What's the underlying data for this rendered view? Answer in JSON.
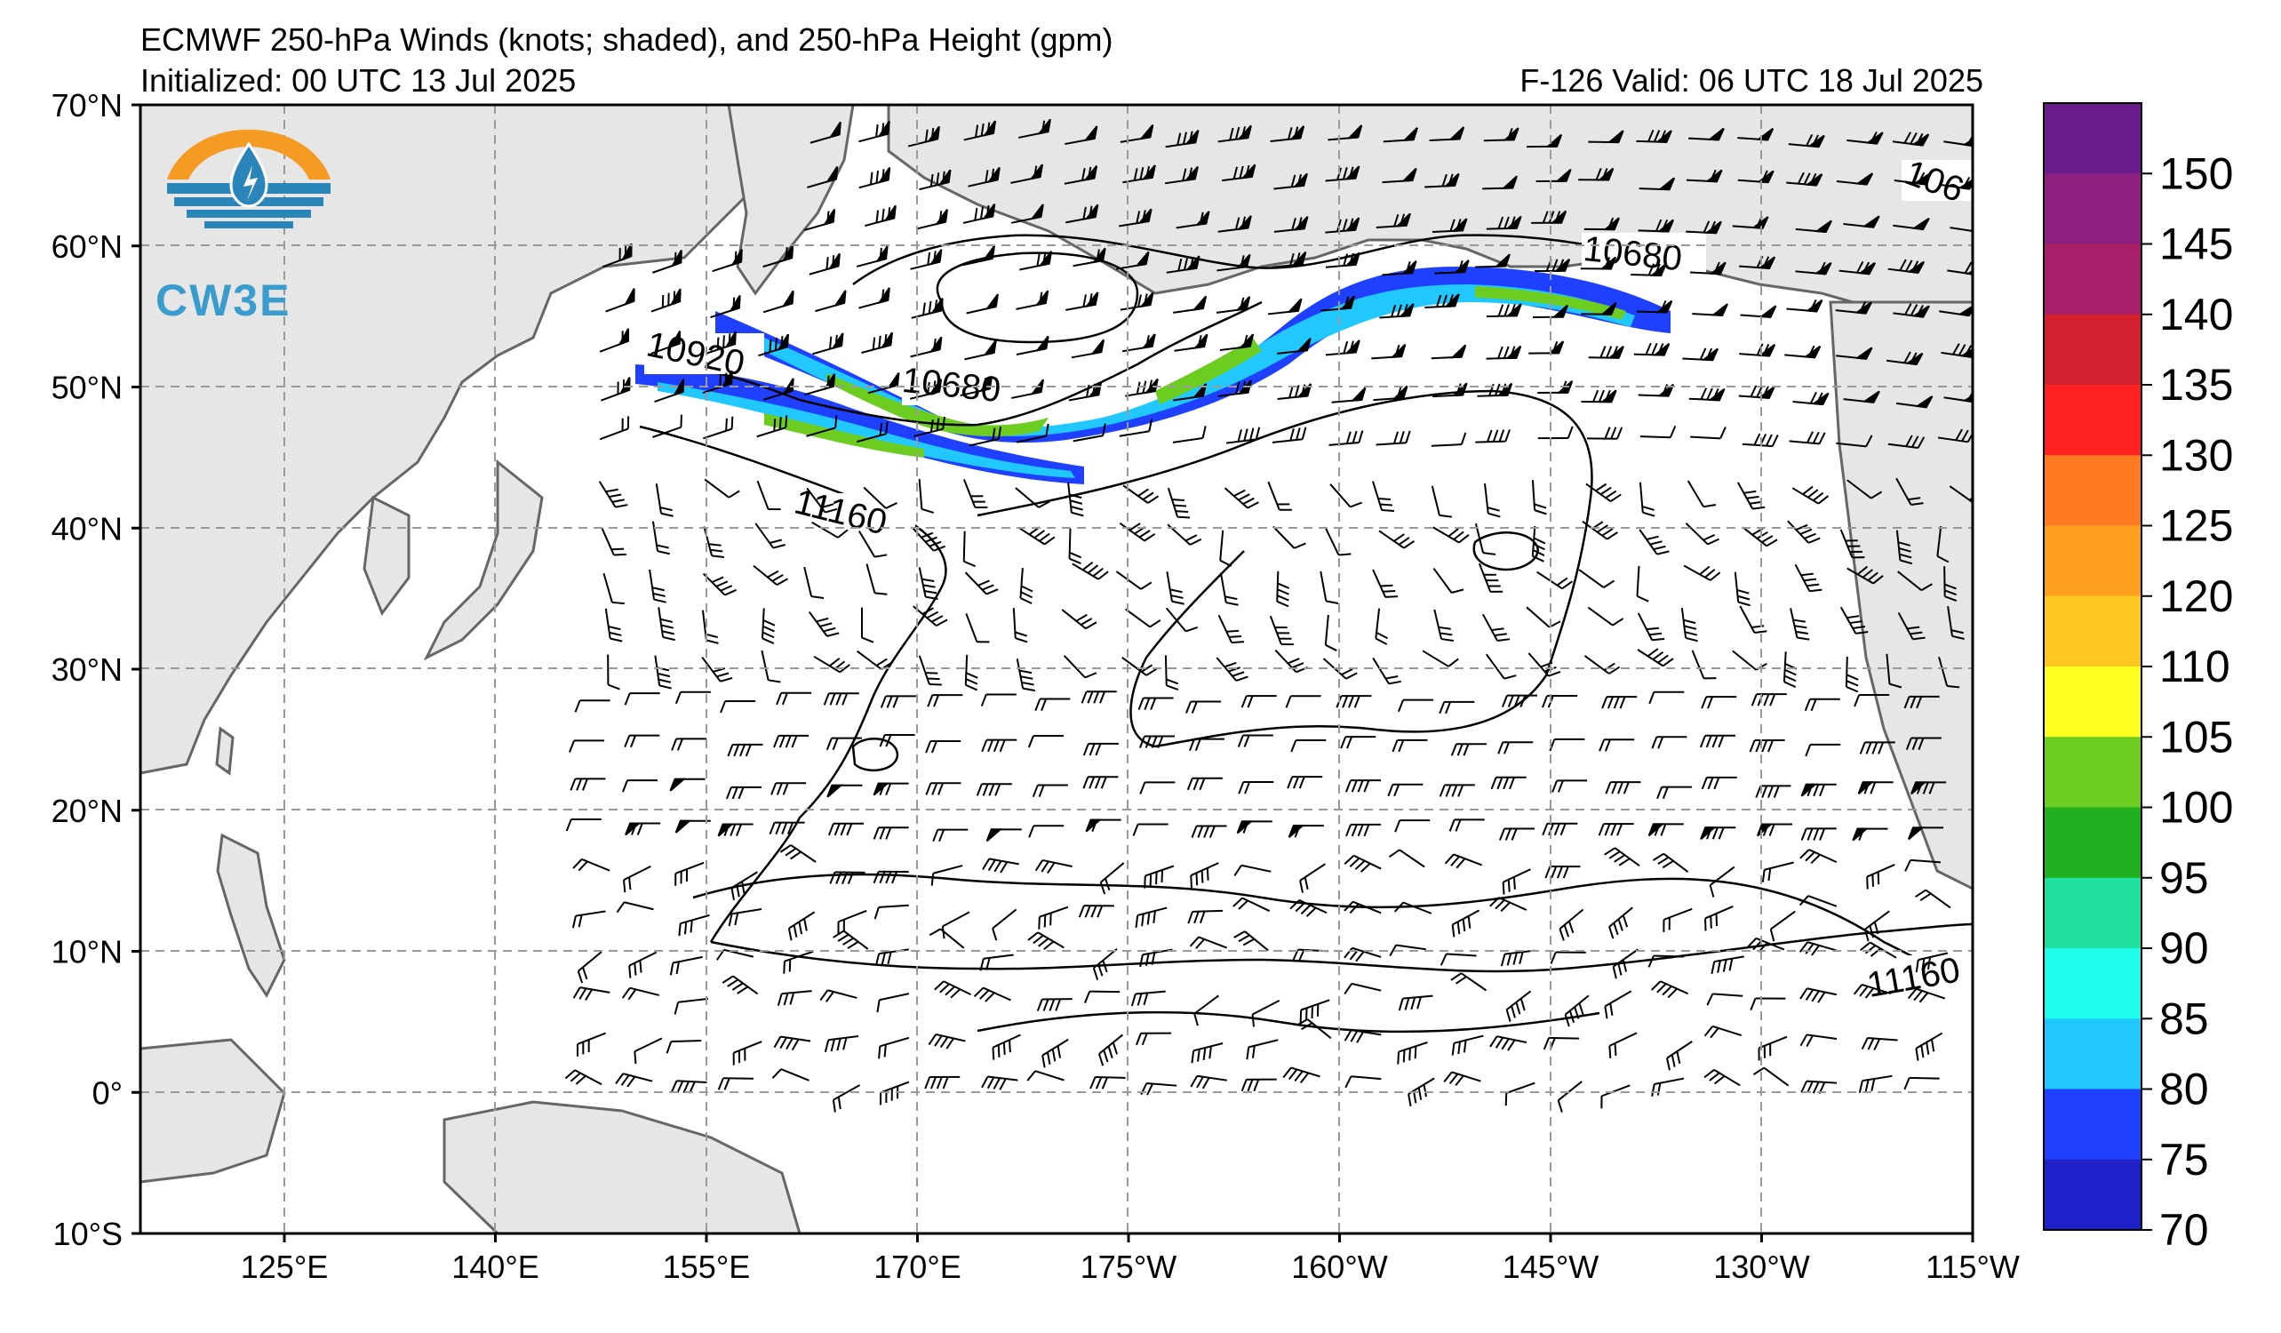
{
  "header": {
    "title": "ECMWF 250-hPa Winds (knots; shaded), and 250-hPa Height (gpm)",
    "initialized": "Initialized: 00 UTC 13 Jul 2025",
    "valid": "F-126  Valid: 06 UTC 18 Jul 2025"
  },
  "logo": {
    "text": "CW3E",
    "icon": "water-drop-lightning-icon"
  },
  "map": {
    "lon_range": [
      110,
      -115
    ],
    "lat_range": [
      -10,
      70
    ],
    "lat_labels": [
      "70°N",
      "60°N",
      "50°N",
      "40°N",
      "30°N",
      "20°N",
      "10°N",
      "0°",
      "10°S"
    ],
    "lon_labels": [
      "125°E",
      "140°E",
      "155°E",
      "170°E",
      "175°W",
      "160°W",
      "145°W",
      "130°W",
      "115°W"
    ],
    "contour_labels": [
      "10920",
      "10680",
      "10680",
      "11160",
      "11160",
      "106"
    ],
    "land_color": "#e6e6e6",
    "grid": "dashed gray"
  },
  "colorbar": {
    "ticks": [
      "150",
      "145",
      "140",
      "135",
      "130",
      "125",
      "120",
      "110",
      "105",
      "100",
      "95",
      "90",
      "85",
      "80",
      "75",
      "70"
    ],
    "colors": [
      "#6a1a8a",
      "#8e1f7e",
      "#a8206a",
      "#d2202e",
      "#ff2020",
      "#ff7a20",
      "#ffa020",
      "#ffc820",
      "#ffff20",
      "#6ccc20",
      "#20b020",
      "#20e0a0",
      "#20ffee",
      "#20c8ff",
      "#2040ff",
      "#2020c8"
    ]
  }
}
